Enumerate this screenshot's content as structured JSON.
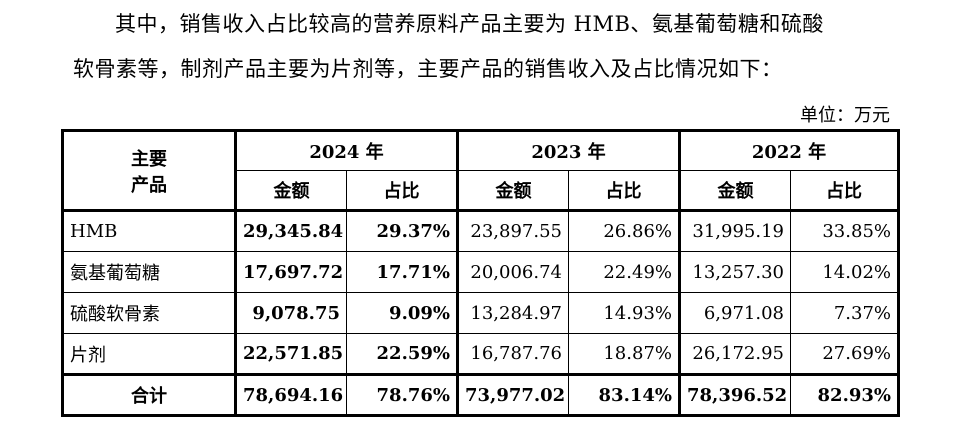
{
  "intro": {
    "line1": "其中，销售收入占比较高的营养原料产品主要为 HMB、氨基葡萄糖和硫酸",
    "line2": "软骨素等，制剂产品主要为片剂等，主要产品的销售收入及占比情况如下："
  },
  "unit": "单位：万元",
  "table": {
    "product_header": "主要\n产品",
    "product_header_line1": "主要",
    "product_header_line2": "产品",
    "years": [
      "2024 年",
      "2023 年",
      "2022 年"
    ],
    "sub_headers": [
      "金额",
      "占比",
      "金额",
      "占比",
      "金额",
      "占比"
    ],
    "rows": [
      {
        "product": "HMB",
        "values": [
          "29,345.84",
          "29.37%",
          "23,897.55",
          "26.86%",
          "31,995.19",
          "33.85%"
        ]
      },
      {
        "product": "氨基葡萄糖",
        "values": [
          "17,697.72",
          "17.71%",
          "20,006.74",
          "22.49%",
          "13,257.30",
          "14.02%"
        ]
      },
      {
        "product": "硫酸软骨素",
        "values": [
          "9,078.75",
          "9.09%",
          "13,284.97",
          "14.93%",
          "6,971.08",
          "7.37%"
        ]
      },
      {
        "product": "片剂",
        "values": [
          "22,571.85",
          "22.59%",
          "16,787.76",
          "18.87%",
          "26,172.95",
          "27.69%"
        ]
      }
    ],
    "total": {
      "product": "合计",
      "values": [
        "78,694.16",
        "78.76%",
        "73,977.02",
        "83.14%",
        "78,396.52",
        "82.93%"
      ]
    }
  }
}
